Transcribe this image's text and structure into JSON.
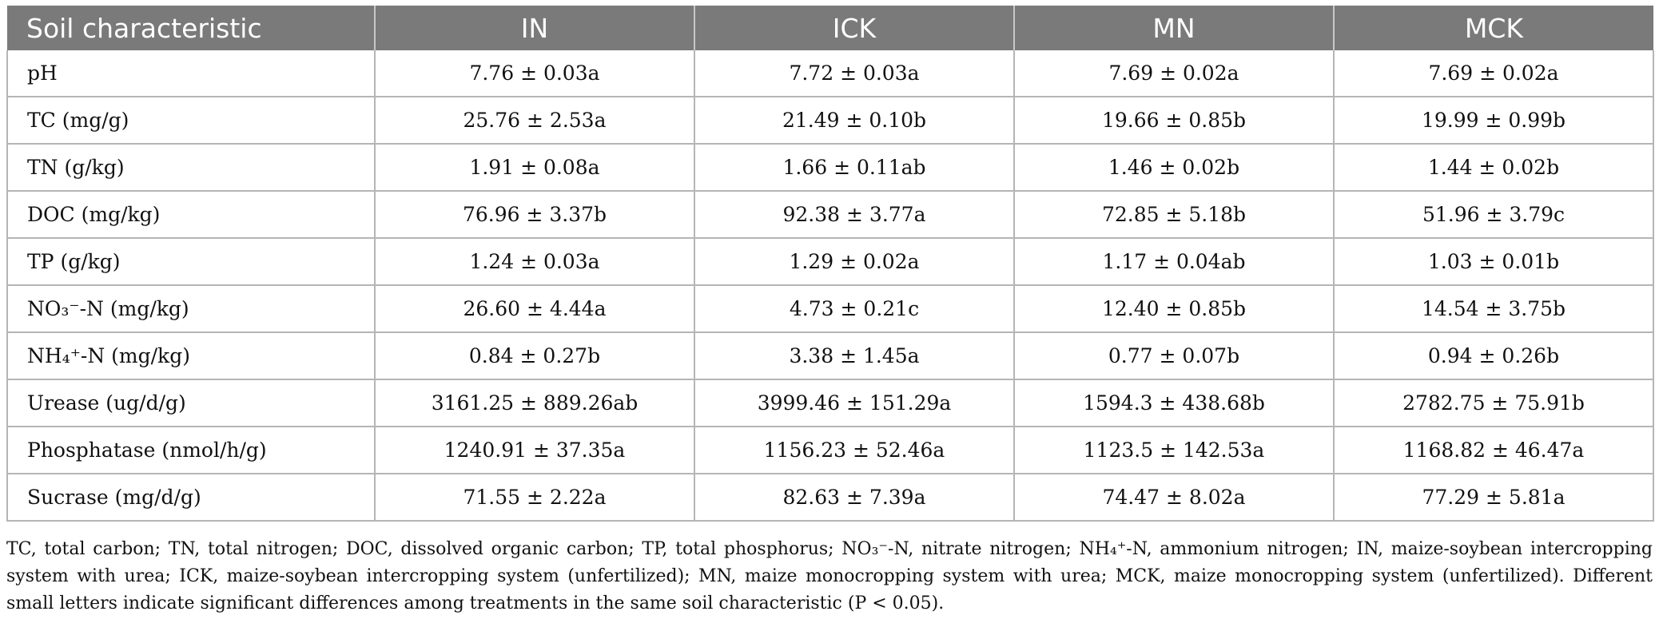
{
  "table": {
    "headers": [
      "Soil characteristic",
      "IN",
      "ICK",
      "MN",
      "MCK"
    ],
    "rows": [
      {
        "label": "pH",
        "values": [
          "7.76 ± 0.03a",
          "7.72 ± 0.03a",
          "7.69 ± 0.02a",
          "7.69 ± 0.02a"
        ]
      },
      {
        "label": "TC (mg/g)",
        "values": [
          "25.76 ± 2.53a",
          "21.49 ± 0.10b",
          "19.66 ± 0.85b",
          "19.99 ± 0.99b"
        ]
      },
      {
        "label": "TN (g/kg)",
        "values": [
          "1.91 ± 0.08a",
          "1.66 ± 0.11ab",
          "1.46 ± 0.02b",
          "1.44 ± 0.02b"
        ]
      },
      {
        "label": "DOC (mg/kg)",
        "values": [
          "76.96 ± 3.37b",
          "92.38 ± 3.77a",
          "72.85 ± 5.18b",
          "51.96 ± 3.79c"
        ]
      },
      {
        "label": "TP (g/kg)",
        "values": [
          "1.24 ± 0.03a",
          "1.29 ± 0.02a",
          "1.17 ± 0.04ab",
          "1.03 ± 0.01b"
        ]
      },
      {
        "label": "NO₃⁻-N (mg/kg)",
        "values": [
          "26.60 ± 4.44a",
          "4.73 ± 0.21c",
          "12.40 ± 0.85b",
          "14.54 ± 3.75b"
        ]
      },
      {
        "label": "NH₄⁺-N (mg/kg)",
        "values": [
          "0.84 ± 0.27b",
          "3.38 ± 1.45a",
          "0.77 ± 0.07b",
          "0.94 ± 0.26b"
        ]
      },
      {
        "label": "Urease (ug/d/g)",
        "values": [
          "3161.25 ± 889.26ab",
          "3999.46 ± 151.29a",
          "1594.3 ± 438.68b",
          "2782.75 ± 75.91b"
        ]
      },
      {
        "label": "Phosphatase (nmol/h/g)",
        "values": [
          "1240.91 ± 37.35a",
          "1156.23 ± 52.46a",
          "1123.5 ± 142.53a",
          "1168.82 ± 46.47a"
        ]
      },
      {
        "label": "Sucrase (mg/d/g)",
        "values": [
          "71.55 ± 2.22a",
          "82.63 ± 7.39a",
          "74.47 ± 8.02a",
          "77.29 ± 5.81a"
        ]
      }
    ]
  },
  "footnote": "TC, total carbon; TN, total nitrogen; DOC, dissolved organic carbon; TP, total phosphorus; NO₃⁻-N, nitrate nitrogen; NH₄⁺-N, ammonium nitrogen; IN, maize-soybean intercropping system with urea; ICK, maize-soybean intercropping system (unfertilized); MN, maize monocropping system with urea; MCK, maize monocropping system (unfertilized). Different small letters indicate significant differences among treatments in the same soil characteristic (P < 0.05)."
}
